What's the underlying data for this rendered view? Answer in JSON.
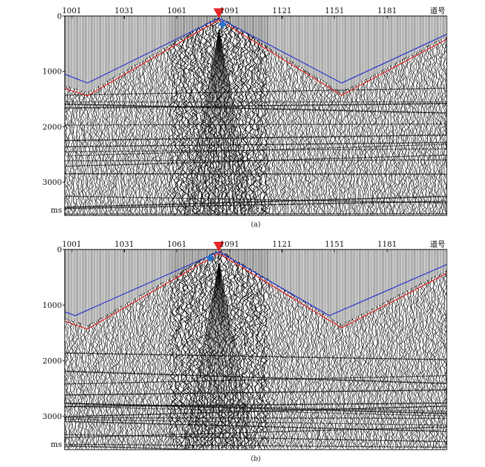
{
  "figure_caption_a": "(a)",
  "figure_caption_b": "(b)",
  "chart_data": [
    {
      "type": "line",
      "panel": "(a)",
      "x_ticks": [
        1001,
        1031,
        1061,
        1091,
        1121,
        1151,
        1181
      ],
      "x_unit_label": "道号",
      "y_ticks": [
        0,
        1000,
        2000,
        3000
      ],
      "y_unit_label": "ms",
      "xlim": [
        997,
        1215
      ],
      "ylim": [
        0,
        3600
      ],
      "grid": false,
      "shot_marker_trace": 1085,
      "shot_marker_color": "#e8262b",
      "source_marker_trace": 1087,
      "source_marker_color": "#2e74c8",
      "series": [
        {
          "color": "#1f2fcf",
          "x": [
            997,
            1010,
            1085,
            1155,
            1215
          ],
          "y": [
            1050,
            1210,
            40,
            1210,
            330
          ]
        },
        {
          "color": "#e11d1d",
          "x": [
            997,
            1010,
            1085,
            1155,
            1215
          ],
          "y": [
            1310,
            1440,
            70,
            1430,
            420
          ]
        }
      ]
    },
    {
      "type": "line",
      "panel": "(b)",
      "x_ticks": [
        1001,
        1031,
        1061,
        1091,
        1121,
        1151,
        1181
      ],
      "x_unit_label": "道号",
      "y_ticks": [
        0,
        1000,
        2000,
        3000
      ],
      "y_unit_label": "ms",
      "xlim": [
        997,
        1215
      ],
      "ylim": [
        0,
        3600
      ],
      "grid": false,
      "shot_marker_trace": 1085,
      "shot_marker_color": "#e8262b",
      "source_marker_trace": 1080,
      "source_marker_color": "#2e74c8",
      "series": [
        {
          "color": "#1f2fcf",
          "x": [
            997,
            1003,
            1085,
            1148,
            1215
          ],
          "y": [
            1120,
            1190,
            40,
            1190,
            270
          ]
        },
        {
          "color": "#e11d1d",
          "x": [
            997,
            1010,
            1085,
            1155,
            1215
          ],
          "y": [
            1290,
            1430,
            70,
            1410,
            430
          ]
        }
      ]
    }
  ]
}
